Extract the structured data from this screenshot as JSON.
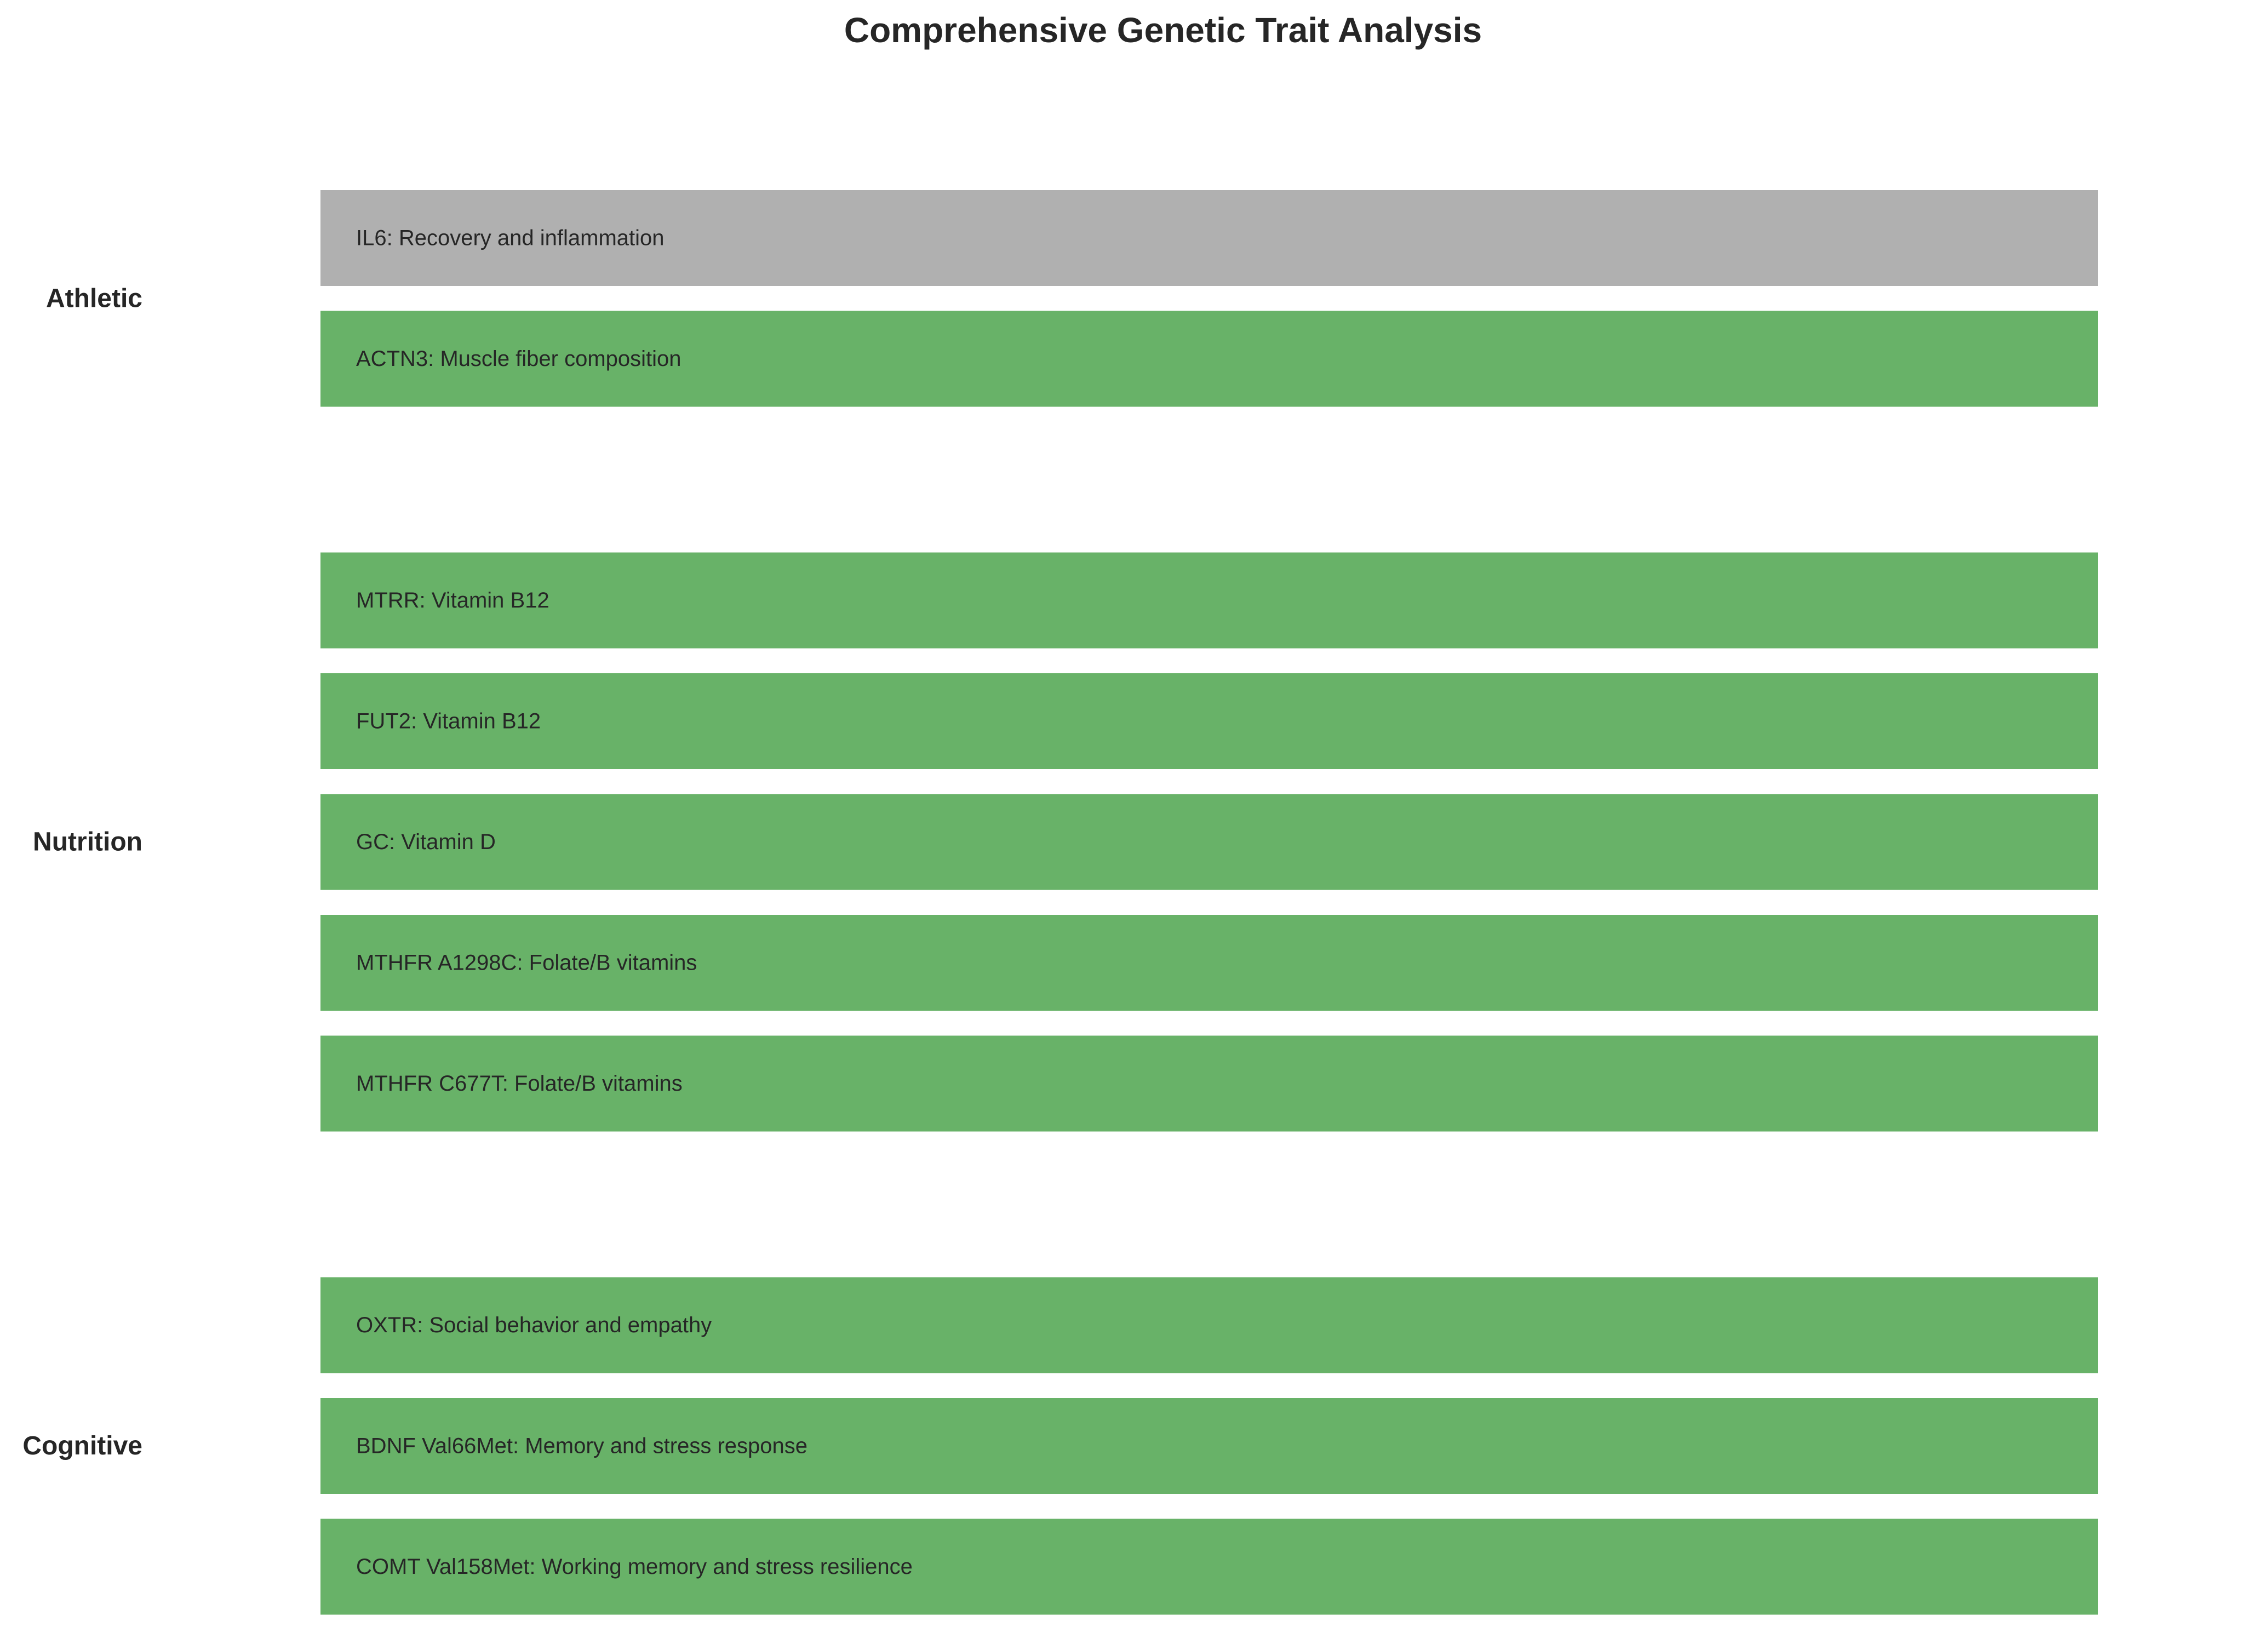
{
  "chart_data": {
    "type": "bar",
    "title": "Comprehensive Genetic Trait Analysis",
    "groups": [
      {
        "category": "Athletic",
        "traits": [
          {
            "gene": "IL6",
            "trait": "Recovery and inflammation",
            "label": "IL6: Recovery and inflammation",
            "color": "#b0b0b0"
          },
          {
            "gene": "ACTN3",
            "trait": "Muscle fiber composition",
            "label": "ACTN3: Muscle fiber composition",
            "color": "#68b268"
          }
        ]
      },
      {
        "category": "Nutrition",
        "traits": [
          {
            "gene": "MTRR",
            "trait": "Vitamin B12",
            "label": "MTRR: Vitamin B12",
            "color": "#68b268"
          },
          {
            "gene": "FUT2",
            "trait": "Vitamin B12",
            "label": "FUT2: Vitamin B12",
            "color": "#68b268"
          },
          {
            "gene": "GC",
            "trait": "Vitamin D",
            "label": "GC: Vitamin D",
            "color": "#68b268"
          },
          {
            "gene": "MTHFR A1298C",
            "trait": "Folate/B vitamins",
            "label": "MTHFR A1298C: Folate/B vitamins",
            "color": "#68b268"
          },
          {
            "gene": "MTHFR C677T",
            "trait": "Folate/B vitamins",
            "label": "MTHFR C677T: Folate/B vitamins",
            "color": "#68b268"
          }
        ]
      },
      {
        "category": "Cognitive",
        "traits": [
          {
            "gene": "OXTR",
            "trait": "Social behavior and empathy",
            "label": "OXTR: Social behavior and empathy",
            "color": "#68b268"
          },
          {
            "gene": "BDNF Val66Met",
            "trait": "Memory and stress response",
            "label": "BDNF Val66Met: Memory and stress response",
            "color": "#68b268"
          },
          {
            "gene": "COMT Val158Met",
            "trait": "Working memory and stress resilience",
            "label": "COMT Val158Met: Working memory and stress resilience",
            "color": "#68b268"
          }
        ]
      }
    ],
    "grid": false,
    "legend": "none"
  }
}
